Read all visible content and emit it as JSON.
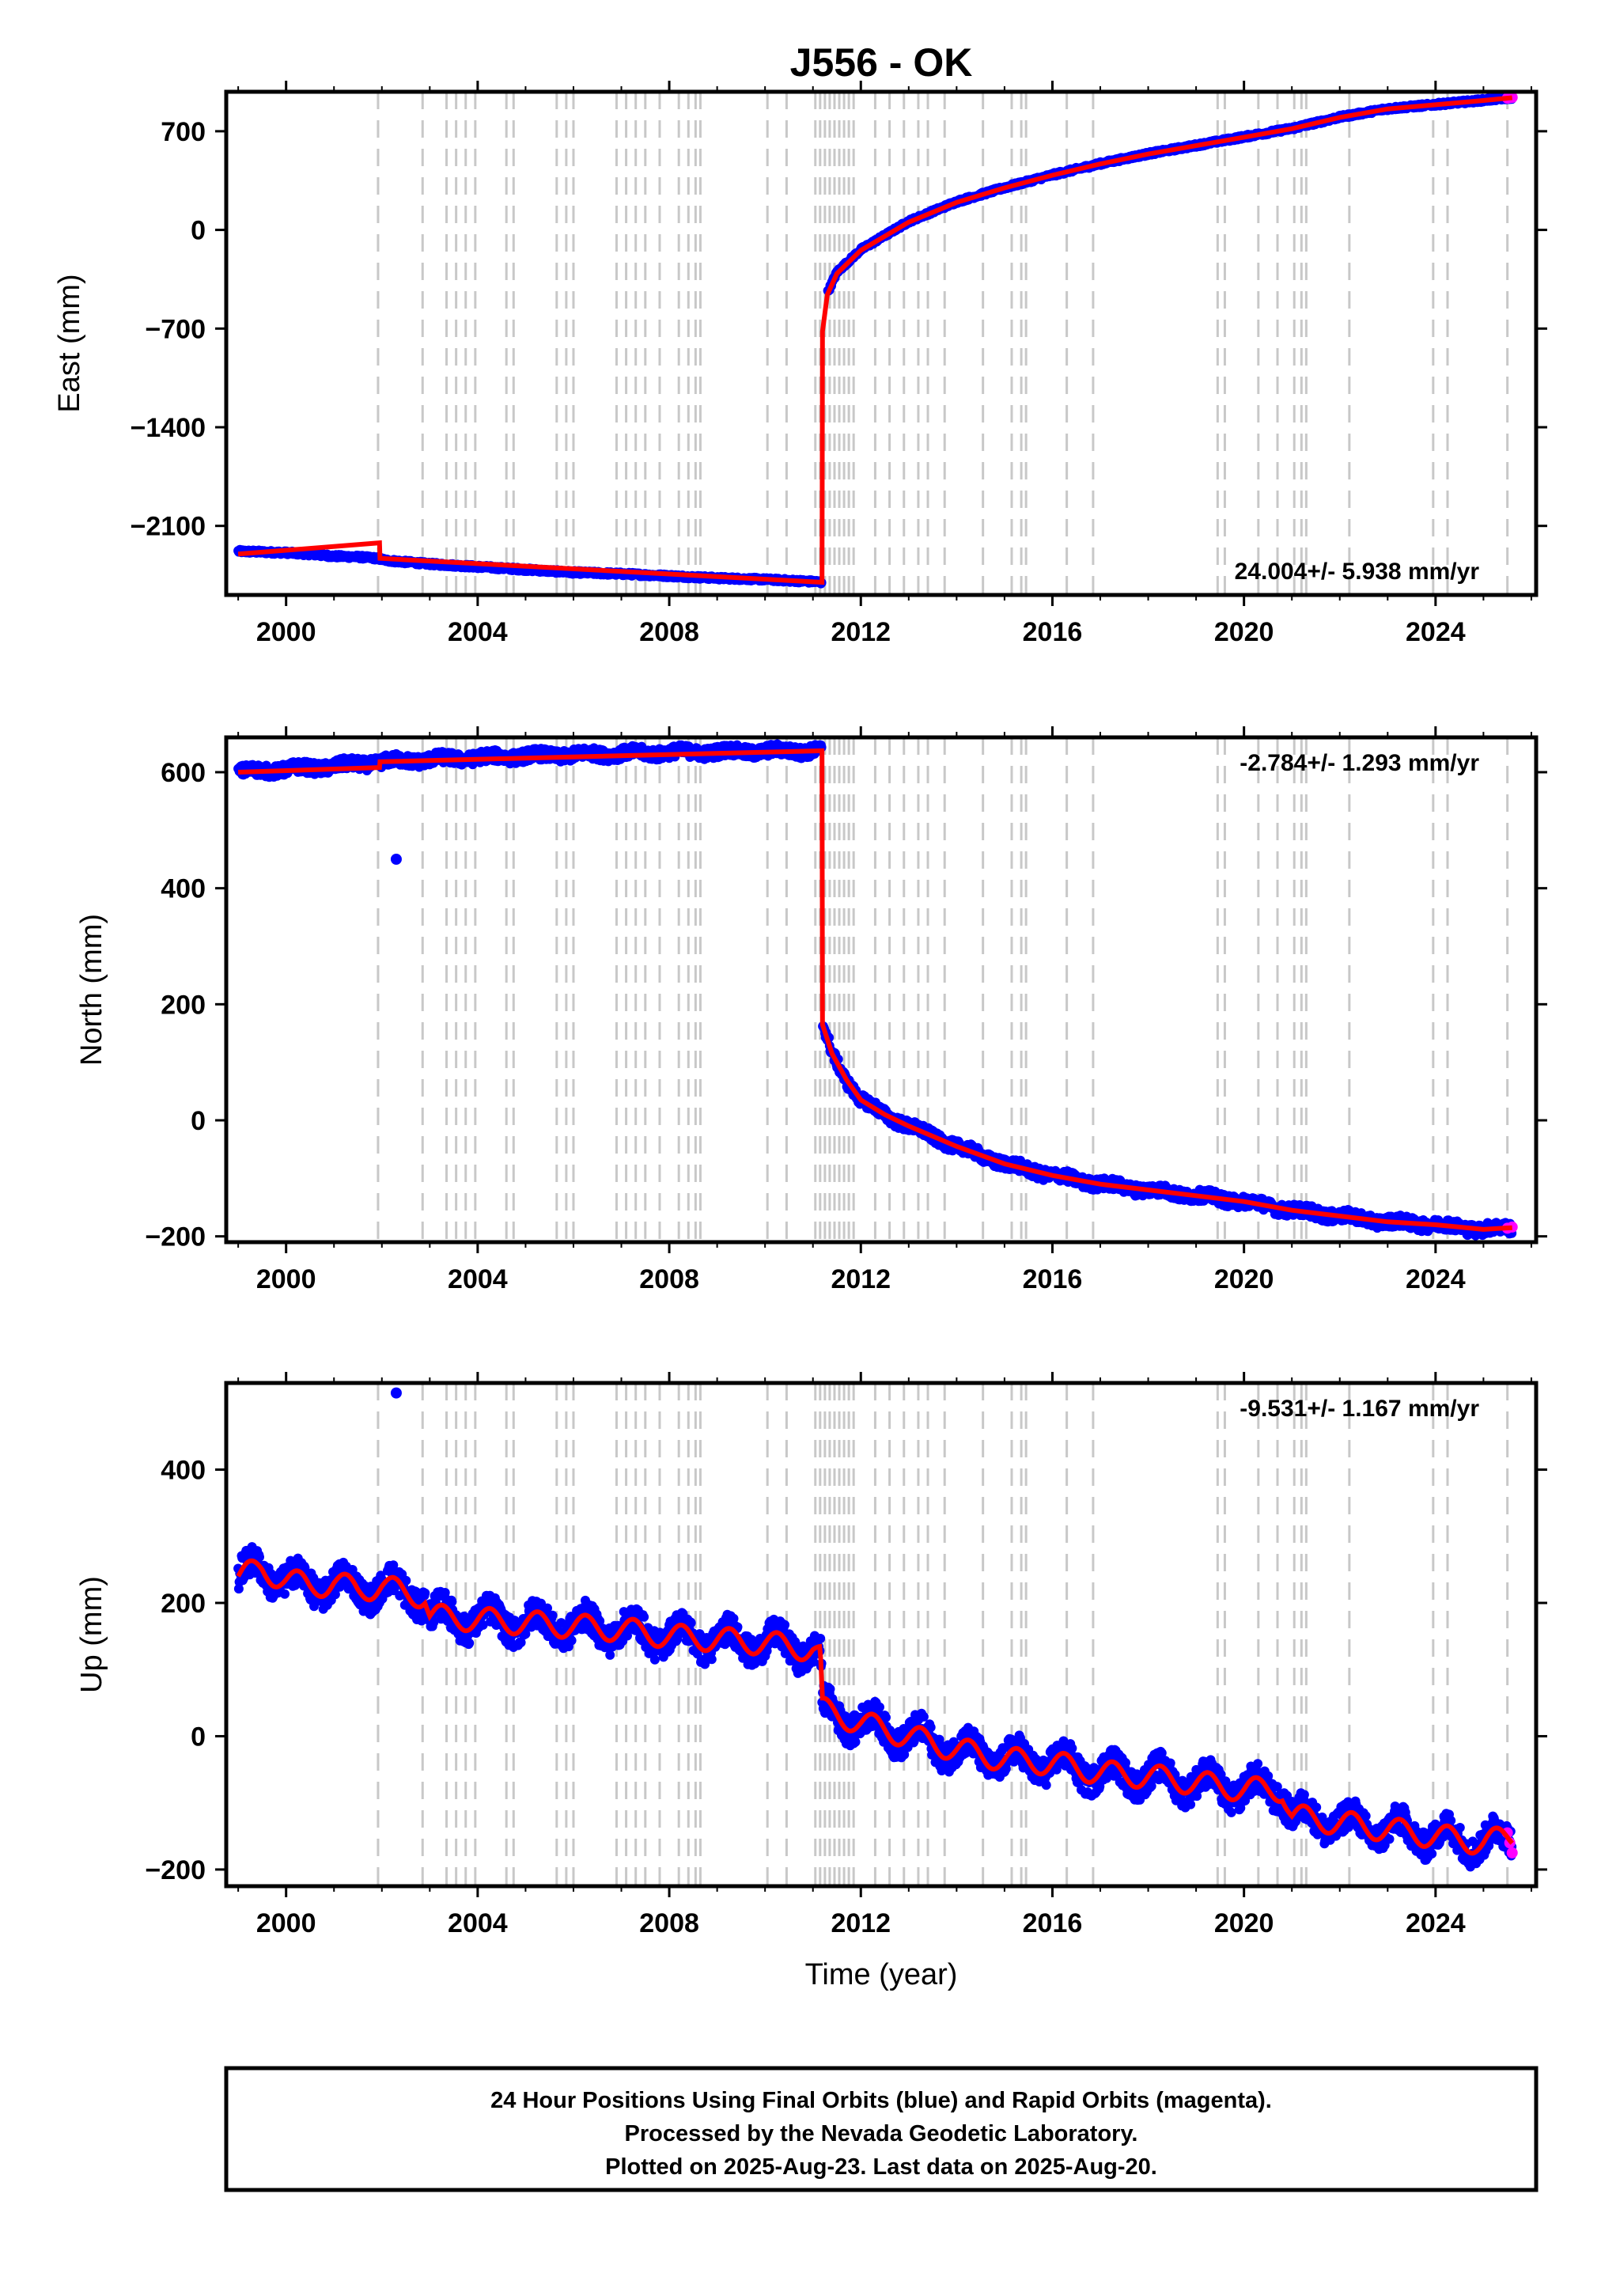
{
  "title": "J556 - OK",
  "xlabel": "Time (year)",
  "footer": {
    "line1": "24 Hour Positions Using Final Orbits (blue) and Rapid Orbits (magenta).",
    "line2": "Processed by the Nevada Geodetic Laboratory.",
    "line3": "Plotted on 2025-Aug-23. Last data on 2025-Aug-20."
  },
  "colors": {
    "final_orbits": "#0000ff",
    "rapid_orbits": "#ff00ff",
    "model": "#ff0000",
    "event_lines": "#c8c8c8"
  },
  "chart_data": [
    {
      "type": "scatter",
      "panel": "east",
      "ylabel": "East (mm)",
      "rate_text": "24.004+/- 5.938 mm/yr",
      "xlim": [
        1998.75,
        2026.1
      ],
      "ylim": [
        -2590,
        980
      ],
      "xticks": [
        2000,
        2004,
        2008,
        2012,
        2016,
        2020,
        2024
      ],
      "yticks": [
        700,
        0,
        -700,
        -1400,
        -2100
      ],
      "ytick_labels": [
        "700",
        "0",
        "−700",
        "−1400",
        "−2100"
      ],
      "series": [
        {
          "name": "Final Orbits",
          "x": [
            1999.0,
            1999.5,
            2000.0,
            2000.5,
            2001.0,
            2001.5,
            2001.9,
            2002.1,
            2003.0,
            2004.0,
            2005.0,
            2006.0,
            2007.0,
            2008.0,
            2009.0,
            2010.0,
            2011.0,
            2011.18,
            2011.2,
            2011.3,
            2011.5,
            2012.0,
            2013.0,
            2014.0,
            2015.0,
            2016.0,
            2017.0,
            2018.0,
            2019.0,
            2020.0,
            2021.0,
            2022.0,
            2023.0,
            2024.0,
            2025.0,
            2025.6
          ],
          "y": [
            -2280,
            -2285,
            -2290,
            -2300,
            -2315,
            -2320,
            -2330,
            -2345,
            -2370,
            -2390,
            -2410,
            -2430,
            -2440,
            -2455,
            -2470,
            -2480,
            -2495,
            -2500,
            -700,
            -450,
            -300,
            -140,
            60,
            200,
            300,
            390,
            470,
            540,
            600,
            660,
            720,
            800,
            860,
            890,
            920,
            940
          ]
        },
        {
          "name": "Rapid Orbits",
          "x": [
            2025.5,
            2025.55,
            2025.6
          ],
          "y": [
            935,
            938,
            940
          ]
        }
      ],
      "model": {
        "x": [
          1999.0,
          2001.95,
          2001.96,
          2011.19,
          2011.2,
          2011.3,
          2011.5,
          2012.0,
          2013.0,
          2014.0,
          2015.0,
          2016.0,
          2017.0,
          2018.0,
          2019.0,
          2020.0,
          2021.0,
          2022.0,
          2023.0,
          2024.0,
          2025.0,
          2025.6
        ],
        "y": [
          -2300,
          -2220,
          -2330,
          -2500,
          -720,
          -460,
          -310,
          -145,
          55,
          195,
          298,
          388,
          468,
          538,
          598,
          658,
          718,
          798,
          858,
          888,
          918,
          938
        ]
      }
    },
    {
      "type": "scatter",
      "panel": "north",
      "ylabel": "North (mm)",
      "rate_text": "-2.784+/- 1.293 mm/yr",
      "xlim": [
        1998.75,
        2026.1
      ],
      "ylim": [
        -210,
        660
      ],
      "xticks": [
        2000,
        2004,
        2008,
        2012,
        2016,
        2020,
        2024
      ],
      "yticks": [
        600,
        400,
        200,
        0,
        -200
      ],
      "ytick_labels": [
        "600",
        "400",
        "200",
        "0",
        "−200"
      ],
      "series": [
        {
          "name": "Final Orbits",
          "x": [
            1999.0,
            1999.5,
            2000.0,
            2001.0,
            2002.0,
            2003.0,
            2004.0,
            2005.0,
            2006.0,
            2007.0,
            2008.0,
            2009.0,
            2010.0,
            2011.0,
            2011.18,
            2011.2,
            2011.4,
            2011.7,
            2012.0,
            2012.5,
            2013.0,
            2014.0,
            2015.0,
            2016.0,
            2017.0,
            2018.0,
            2019.0,
            2020.0,
            2021.0,
            2022.0,
            2023.0,
            2024.0,
            2025.0,
            2025.6
          ],
          "y": [
            600,
            603,
            605,
            610,
            618,
            622,
            625,
            628,
            630,
            632,
            634,
            635,
            636,
            637,
            637,
            165,
            115,
            70,
            35,
            10,
            -10,
            -45,
            -75,
            -95,
            -110,
            -120,
            -130,
            -140,
            -155,
            -165,
            -175,
            -180,
            -188,
            -185
          ]
        },
        {
          "name": "outlier",
          "x": [
            2002.3
          ],
          "y": [
            450
          ]
        },
        {
          "name": "Rapid Orbits",
          "x": [
            2025.5,
            2025.6
          ],
          "y": [
            -186,
            -184
          ]
        }
      ],
      "model": {
        "x": [
          1999.0,
          2001.95,
          2001.96,
          2011.19,
          2011.2,
          2011.4,
          2011.7,
          2012.0,
          2012.5,
          2013.0,
          2014.0,
          2015.0,
          2016.0,
          2017.0,
          2018.0,
          2019.0,
          2020.0,
          2021.0,
          2022.0,
          2023.0,
          2024.0,
          2025.0,
          2025.6
        ],
        "y": [
          600,
          608,
          618,
          637,
          165,
          115,
          70,
          35,
          10,
          -10,
          -45,
          -75,
          -95,
          -110,
          -120,
          -130,
          -140,
          -155,
          -165,
          -175,
          -180,
          -188,
          -185
        ]
      }
    },
    {
      "type": "scatter",
      "panel": "up",
      "ylabel": "Up (mm)",
      "rate_text": "-9.531+/- 1.167 mm/yr",
      "xlim": [
        1998.75,
        2026.1
      ],
      "ylim": [
        -225,
        530
      ],
      "xticks": [
        2000,
        2004,
        2008,
        2012,
        2016,
        2020,
        2024
      ],
      "yticks": [
        400,
        200,
        0,
        -200
      ],
      "ytick_labels": [
        "400",
        "200",
        "0",
        "−200"
      ],
      "series": [
        {
          "name": "Final Orbits",
          "x": [
            1999.0,
            1999.5,
            2000.0,
            2000.5,
            2001.0,
            2001.5,
            2002.0,
            2002.5,
            2002.9,
            2003.0,
            2004.0,
            2005.0,
            2006.0,
            2007.0,
            2008.0,
            2009.0,
            2010.0,
            2011.0,
            2011.15,
            2011.2,
            2012.0,
            2013.0,
            2014.0,
            2015.0,
            2016.0,
            2017.0,
            2018.0,
            2019.0,
            2020.0,
            2020.8,
            2021.0,
            2022.0,
            2023.0,
            2024.0,
            2025.0,
            2025.6
          ],
          "y": [
            240,
            250,
            235,
            225,
            230,
            220,
            225,
            215,
            210,
            180,
            175,
            170,
            165,
            160,
            150,
            145,
            140,
            130,
            120,
            40,
            20,
            0,
            -20,
            -35,
            -40,
            -55,
            -60,
            -70,
            -80,
            -80,
            -120,
            -130,
            -140,
            -150,
            -160,
            -150
          ]
        },
        {
          "name": "outlier",
          "x": [
            2002.3
          ],
          "y": [
            515
          ]
        },
        {
          "name": "Rapid Orbits",
          "x": [
            2025.5,
            2025.55,
            2025.6
          ],
          "y": [
            -145,
            -160,
            -175
          ]
        }
      ],
      "model": {
        "x": [
          1999.0,
          1999.5,
          2000.0,
          2000.5,
          2001.0,
          2001.5,
          2002.0,
          2002.5,
          2002.9,
          2003.0,
          2004.0,
          2005.0,
          2006.0,
          2007.0,
          2008.0,
          2009.0,
          2010.0,
          2011.0,
          2011.15,
          2011.2,
          2012.0,
          2013.0,
          2014.0,
          2015.0,
          2016.0,
          2017.0,
          2018.0,
          2019.0,
          2020.0,
          2020.8,
          2021.0,
          2022.0,
          2023.0,
          2024.0,
          2025.0,
          2025.6
        ],
        "y": [
          240,
          250,
          235,
          225,
          230,
          220,
          225,
          215,
          210,
          180,
          175,
          170,
          165,
          160,
          150,
          145,
          140,
          130,
          120,
          40,
          20,
          0,
          -20,
          -35,
          -40,
          -55,
          -60,
          -70,
          -80,
          -80,
          -120,
          -130,
          -140,
          -150,
          -160,
          -150
        ]
      }
    }
  ],
  "event_lines": [
    2001.92,
    2002.85,
    2003.35,
    2003.55,
    2003.75,
    2003.95,
    2004.6,
    2004.75,
    2005.65,
    2005.85,
    2006.0,
    2006.9,
    2007.1,
    2007.3,
    2007.5,
    2007.8,
    2008.2,
    2008.4,
    2008.55,
    2008.65,
    2010.05,
    2010.45,
    2011.05,
    2011.15,
    2011.25,
    2011.35,
    2011.45,
    2011.55,
    2011.65,
    2011.75,
    2011.85,
    2012.3,
    2012.6,
    2012.9,
    2013.2,
    2013.4,
    2013.75,
    2014.55,
    2015.15,
    2015.35,
    2015.45,
    2016.3,
    2016.85,
    2019.45,
    2019.6,
    2020.3,
    2020.7,
    2021.05,
    2021.2,
    2021.3,
    2022.2,
    2023.95,
    2024.25,
    2025.5
  ]
}
